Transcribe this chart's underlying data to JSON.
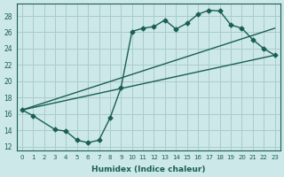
{
  "xlabel": "Humidex (Indice chaleur)",
  "xlim": [
    -0.5,
    23.5
  ],
  "ylim": [
    11.5,
    29.5
  ],
  "xticks": [
    0,
    1,
    2,
    3,
    4,
    5,
    6,
    7,
    8,
    9,
    10,
    11,
    12,
    13,
    14,
    15,
    16,
    17,
    18,
    19,
    20,
    21,
    22,
    23
  ],
  "yticks": [
    12,
    14,
    16,
    18,
    20,
    22,
    24,
    26,
    28
  ],
  "bg_color": "#cce8e8",
  "grid_color": "#aacccc",
  "line_color": "#1a5f50",
  "line1_x": [
    0,
    1,
    3,
    4,
    5,
    6,
    7,
    8,
    9,
    10,
    11,
    12,
    13,
    14,
    15,
    16,
    17,
    18,
    19,
    20,
    21,
    22,
    23
  ],
  "line1_y": [
    16.5,
    15.8,
    14.1,
    13.9,
    12.8,
    12.5,
    12.8,
    15.5,
    19.2,
    26.1,
    26.5,
    26.7,
    27.5,
    26.4,
    27.1,
    28.2,
    28.7,
    28.6,
    26.9,
    26.5,
    25.1,
    24.0,
    23.2
  ],
  "line2_x": [
    0,
    23
  ],
  "line2_y": [
    16.5,
    23.2
  ],
  "line3_x": [
    0,
    23
  ],
  "line3_y": [
    16.5,
    26.5
  ]
}
